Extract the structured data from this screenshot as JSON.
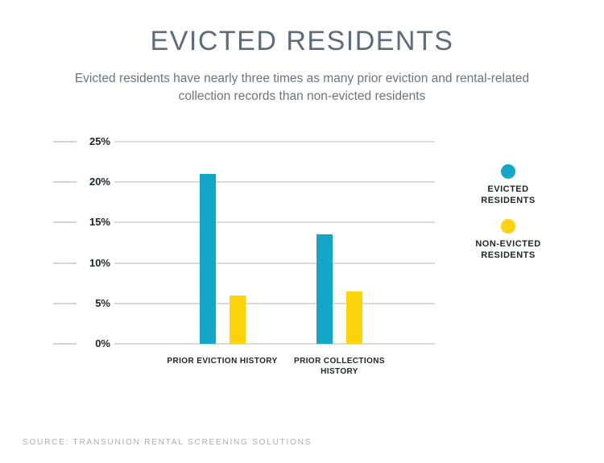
{
  "title": "EVICTED RESIDENTS",
  "subtitle": "Evicted residents have nearly three times as many prior eviction and rental-related collection records than non-evicted residents",
  "source": "SOURCE: TRANSUNION RENTAL SCREENING SOLUTIONS",
  "colors": {
    "evicted_series": "#14A6C6",
    "non_evicted_series": "#FDD40B",
    "title_text": "#5D6C7B",
    "subtitle_text": "#68757F",
    "axis_text": "#20262B",
    "gridline": "#DADADA",
    "source_text": "#A7AEB8",
    "background": "#FFFFFF"
  },
  "chart_data": {
    "type": "bar",
    "title": "EVICTED RESIDENTS",
    "categories": [
      "PRIOR EVICTION HISTORY",
      "PRIOR COLLECTIONS HISTORY"
    ],
    "series": [
      {
        "name": "EVICTED RESIDENTS",
        "color": "#14A6C6",
        "values": [
          21,
          13.5
        ]
      },
      {
        "name": "NON-EVICTED RESIDENTS",
        "color": "#FDD40B",
        "values": [
          6,
          6.5
        ]
      }
    ],
    "xlabel": "",
    "ylabel": "",
    "ylim": [
      0,
      25
    ],
    "yticks": [
      0,
      5,
      10,
      15,
      20,
      25
    ],
    "ytick_suffix": "%",
    "grid": true,
    "legend_position": "right"
  }
}
